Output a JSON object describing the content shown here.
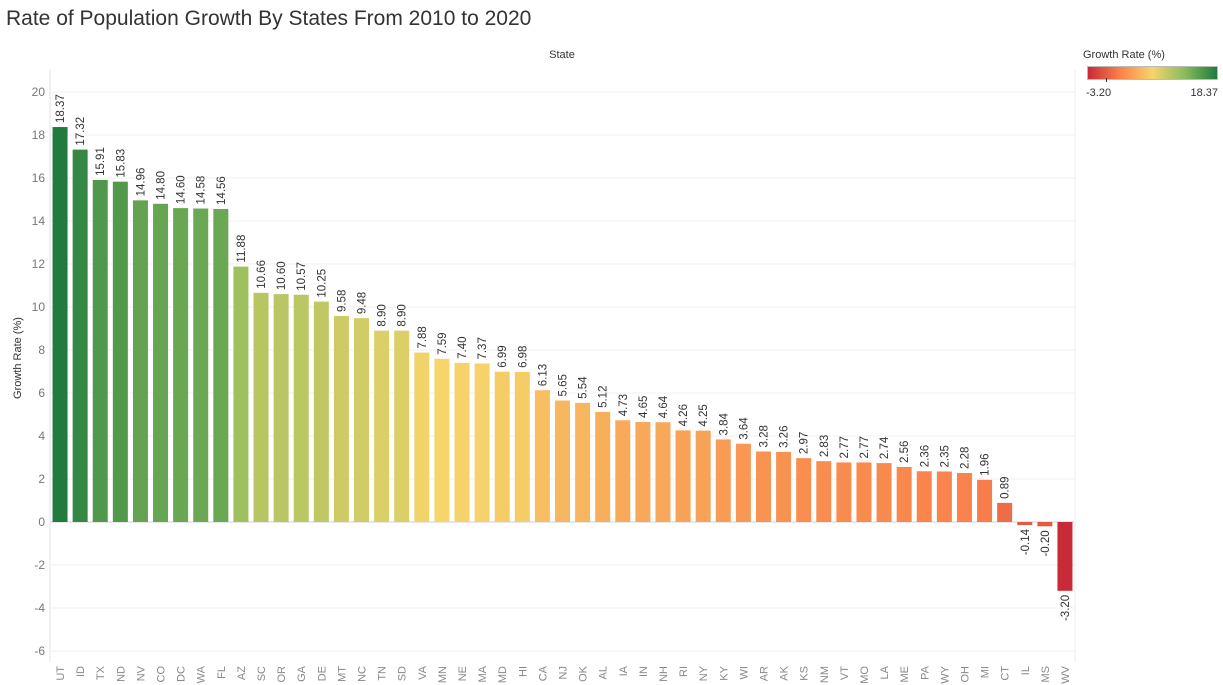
{
  "title": "Rate of Population Growth By States From 2010 to 2020",
  "chart_data": {
    "type": "bar",
    "title": "Rate of Population Growth By States From 2010 to 2020",
    "xlabel": "State",
    "ylabel": "Growth Rate (%)",
    "ylim": [
      -6,
      21
    ],
    "yticks": [
      -6,
      -4,
      -2,
      0,
      2,
      4,
      6,
      8,
      10,
      12,
      14,
      16,
      18,
      20
    ],
    "grid": true,
    "categories": [
      "UT",
      "ID",
      "TX",
      "ND",
      "NV",
      "CO",
      "DC",
      "WA",
      "FL",
      "AZ",
      "SC",
      "OR",
      "GA",
      "DE",
      "MT",
      "NC",
      "TN",
      "SD",
      "VA",
      "MN",
      "NE",
      "MA",
      "MD",
      "HI",
      "CA",
      "NJ",
      "OK",
      "AL",
      "IA",
      "IN",
      "NH",
      "RI",
      "NY",
      "KY",
      "WI",
      "AR",
      "AK",
      "KS",
      "NM",
      "VT",
      "MO",
      "LA",
      "ME",
      "PA",
      "WY",
      "OH",
      "MI",
      "CT",
      "IL",
      "MS",
      "WV"
    ],
    "values": [
      18.37,
      17.32,
      15.91,
      15.83,
      14.96,
      14.8,
      14.6,
      14.58,
      14.56,
      11.88,
      10.66,
      10.6,
      10.57,
      10.25,
      9.58,
      9.48,
      8.9,
      8.9,
      7.88,
      7.59,
      7.4,
      7.37,
      6.99,
      6.98,
      6.13,
      5.65,
      5.54,
      5.12,
      4.73,
      4.65,
      4.64,
      4.26,
      4.25,
      3.84,
      3.64,
      3.28,
      3.26,
      2.97,
      2.83,
      2.77,
      2.77,
      2.74,
      2.56,
      2.36,
      2.35,
      2.28,
      1.96,
      0.89,
      -0.14,
      -0.2,
      -3.2
    ],
    "data_labels": [
      "18.37",
      "17.32",
      "15.91",
      "15.83",
      "14.96",
      "14.80",
      "14.60",
      "14.58",
      "14.56",
      "11.88",
      "10.66",
      "10.60",
      "10.57",
      "10.25",
      "9.58",
      "9.48",
      "8.90",
      "8.90",
      "7.88",
      "7.59",
      "7.40",
      "7.37",
      "6.99",
      "6.98",
      "6.13",
      "5.65",
      "5.54",
      "5.12",
      "4.73",
      "4.65",
      "4.64",
      "4.26",
      "4.25",
      "3.84",
      "3.64",
      "3.28",
      "3.26",
      "2.97",
      "2.83",
      "2.77",
      "2.77",
      "2.74",
      "2.56",
      "2.36",
      "2.35",
      "2.28",
      "1.96",
      "0.89",
      "-0.14",
      "-0.20",
      "-3.20"
    ],
    "color_scale": {
      "min": -3.2,
      "max": 18.37,
      "stops": [
        "#c92a37",
        "#f9824b",
        "#f6d56b",
        "#89bb5c",
        "#217a3e"
      ]
    },
    "legend": {
      "title": "Growth Rate (%)",
      "min_label": "-3.20",
      "max_label": "18.37",
      "placement": "top-right"
    }
  }
}
